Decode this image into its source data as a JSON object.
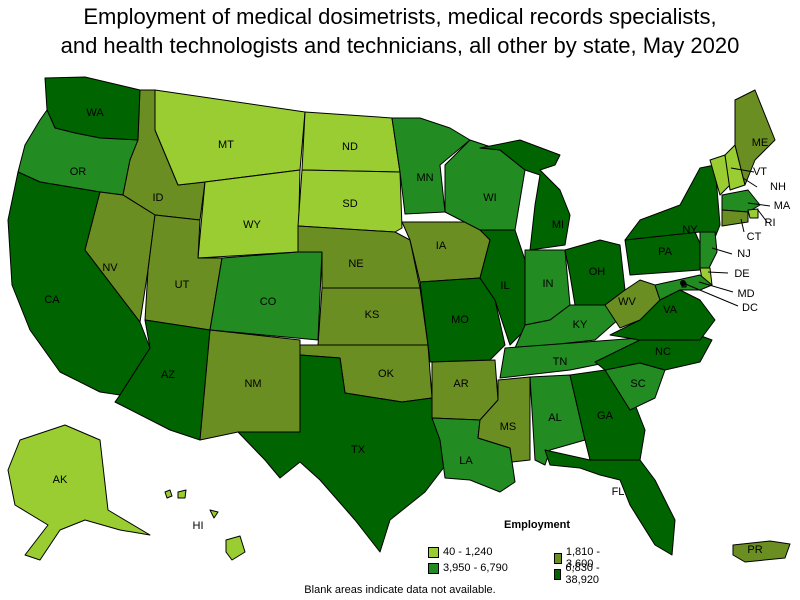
{
  "title_line1": "Employment of medical dosimetrists, medical records specialists,",
  "title_line2": "and health technologists and technicians, all other by state, May 2020",
  "footnote": "Blank areas indicate data not available.",
  "legend": {
    "title": "Employment",
    "bins": [
      {
        "label": "40 - 1,240",
        "color": "#9acd32"
      },
      {
        "label": "1,810 - 3,600",
        "color": "#6b8e23"
      },
      {
        "label": "3,950 - 6,790",
        "color": "#228b22"
      },
      {
        "label": "6,830 - 38,920",
        "color": "#006400"
      }
    ]
  },
  "states": [
    {
      "abbr": "WA",
      "bin": 3
    },
    {
      "abbr": "OR",
      "bin": 2
    },
    {
      "abbr": "CA",
      "bin": 3
    },
    {
      "abbr": "ID",
      "bin": 1
    },
    {
      "abbr": "NV",
      "bin": 1
    },
    {
      "abbr": "MT",
      "bin": 0
    },
    {
      "abbr": "WY",
      "bin": 0
    },
    {
      "abbr": "UT",
      "bin": 1
    },
    {
      "abbr": "AZ",
      "bin": 3
    },
    {
      "abbr": "CO",
      "bin": 2
    },
    {
      "abbr": "NM",
      "bin": 1
    },
    {
      "abbr": "ND",
      "bin": 0
    },
    {
      "abbr": "SD",
      "bin": 0
    },
    {
      "abbr": "NE",
      "bin": 1
    },
    {
      "abbr": "KS",
      "bin": 1
    },
    {
      "abbr": "OK",
      "bin": 1
    },
    {
      "abbr": "TX",
      "bin": 3
    },
    {
      "abbr": "MN",
      "bin": 2
    },
    {
      "abbr": "IA",
      "bin": 1
    },
    {
      "abbr": "MO",
      "bin": 3
    },
    {
      "abbr": "AR",
      "bin": 1
    },
    {
      "abbr": "LA",
      "bin": 2
    },
    {
      "abbr": "WI",
      "bin": 2
    },
    {
      "abbr": "IL",
      "bin": 3
    },
    {
      "abbr": "MI",
      "bin": 3
    },
    {
      "abbr": "IN",
      "bin": 2
    },
    {
      "abbr": "OH",
      "bin": 3
    },
    {
      "abbr": "KY",
      "bin": 2
    },
    {
      "abbr": "TN",
      "bin": 2
    },
    {
      "abbr": "MS",
      "bin": 1
    },
    {
      "abbr": "AL",
      "bin": 2
    },
    {
      "abbr": "GA",
      "bin": 3
    },
    {
      "abbr": "FL",
      "bin": 3
    },
    {
      "abbr": "SC",
      "bin": 2
    },
    {
      "abbr": "NC",
      "bin": 3
    },
    {
      "abbr": "VA",
      "bin": 3
    },
    {
      "abbr": "WV",
      "bin": 1
    },
    {
      "abbr": "PA",
      "bin": 3
    },
    {
      "abbr": "NY",
      "bin": 3
    },
    {
      "abbr": "VT",
      "bin": 0
    },
    {
      "abbr": "NH",
      "bin": 0
    },
    {
      "abbr": "ME",
      "bin": 1
    },
    {
      "abbr": "MA",
      "bin": 2
    },
    {
      "abbr": "RI",
      "bin": 0
    },
    {
      "abbr": "CT",
      "bin": 1
    },
    {
      "abbr": "NJ",
      "bin": 2
    },
    {
      "abbr": "DE",
      "bin": 0
    },
    {
      "abbr": "MD",
      "bin": 2
    },
    {
      "abbr": "DC",
      "bin": 3
    },
    {
      "abbr": "AK",
      "bin": 0
    },
    {
      "abbr": "HI",
      "bin": 0
    },
    {
      "abbr": "PR",
      "bin": 1
    }
  ]
}
